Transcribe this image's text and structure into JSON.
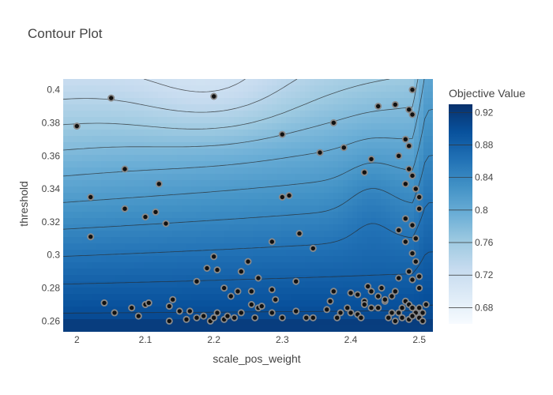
{
  "chart_data": {
    "type": "contour",
    "title": "Contour Plot",
    "xlabel": "scale_pos_weight",
    "ylabel": "threshold",
    "xlim": [
      1.98,
      2.52
    ],
    "ylim": [
      0.2535,
      0.4065
    ],
    "x_ticks": [
      2,
      2.1,
      2.2,
      2.3,
      2.4,
      2.5
    ],
    "x_tick_labels": [
      "2",
      "2.1",
      "2.2",
      "2.3",
      "2.4",
      "2.5"
    ],
    "y_ticks": [
      0.26,
      0.28,
      0.3,
      0.32,
      0.34,
      0.36,
      0.38,
      0.4
    ],
    "y_tick_labels": [
      "0.26",
      "0.28",
      "0.3",
      "0.32",
      "0.34",
      "0.36",
      "0.38",
      "0.4"
    ],
    "colorbar": {
      "title": "Objective Value",
      "range": [
        0.66,
        0.93
      ],
      "ticks": [
        0.68,
        0.72,
        0.76,
        0.8,
        0.84,
        0.88,
        0.92
      ],
      "tick_labels": [
        "0.68",
        "0.72",
        "0.76",
        "0.8",
        "0.84",
        "0.88",
        "0.92"
      ],
      "colorscale": [
        "#f7fbff",
        "#deebf7",
        "#c6dbef",
        "#9ecae1",
        "#6baed6",
        "#4292c6",
        "#2171b5",
        "#08519c",
        "#08306b"
      ]
    },
    "points": [
      [
        2.05,
        0.395
      ],
      [
        2.0,
        0.378
      ],
      [
        2.02,
        0.335
      ],
      [
        2.02,
        0.311
      ],
      [
        2.07,
        0.352
      ],
      [
        2.07,
        0.328
      ],
      [
        2.1,
        0.323
      ],
      [
        2.115,
        0.326
      ],
      [
        2.12,
        0.343
      ],
      [
        2.13,
        0.319
      ],
      [
        2.2,
        0.396
      ],
      [
        2.3,
        0.373
      ],
      [
        2.3,
        0.335
      ],
      [
        2.31,
        0.336
      ],
      [
        2.355,
        0.362
      ],
      [
        2.375,
        0.38
      ],
      [
        2.39,
        0.365
      ],
      [
        2.42,
        0.35
      ],
      [
        2.43,
        0.358
      ],
      [
        2.44,
        0.39
      ],
      [
        2.465,
        0.391
      ],
      [
        2.485,
        0.388
      ],
      [
        2.49,
        0.385
      ],
      [
        2.49,
        0.4
      ],
      [
        2.48,
        0.37
      ],
      [
        2.485,
        0.366
      ],
      [
        2.47,
        0.36
      ],
      [
        2.48,
        0.343
      ],
      [
        2.485,
        0.352
      ],
      [
        2.49,
        0.348
      ],
      [
        2.495,
        0.34
      ],
      [
        2.5,
        0.335
      ],
      [
        2.5,
        0.328
      ],
      [
        2.48,
        0.322
      ],
      [
        2.49,
        0.318
      ],
      [
        2.495,
        0.31
      ],
      [
        2.47,
        0.315
      ],
      [
        2.48,
        0.308
      ],
      [
        2.285,
        0.308
      ],
      [
        2.325,
        0.313
      ],
      [
        2.345,
        0.304
      ],
      [
        2.2,
        0.299
      ],
      [
        2.19,
        0.292
      ],
      [
        2.205,
        0.291
      ],
      [
        2.25,
        0.296
      ],
      [
        2.24,
        0.29
      ],
      [
        2.265,
        0.286
      ],
      [
        2.175,
        0.284
      ],
      [
        2.32,
        0.284
      ],
      [
        2.215,
        0.28
      ],
      [
        2.235,
        0.278
      ],
      [
        2.225,
        0.275
      ],
      [
        2.255,
        0.278
      ],
      [
        2.285,
        0.279
      ],
      [
        2.04,
        0.271
      ],
      [
        2.08,
        0.268
      ],
      [
        2.1,
        0.27
      ],
      [
        2.105,
        0.271
      ],
      [
        2.135,
        0.269
      ],
      [
        2.14,
        0.273
      ],
      [
        2.055,
        0.265
      ],
      [
        2.09,
        0.263
      ],
      [
        2.135,
        0.26
      ],
      [
        2.15,
        0.266
      ],
      [
        2.165,
        0.266
      ],
      [
        2.16,
        0.261
      ],
      [
        2.175,
        0.262
      ],
      [
        2.185,
        0.263
      ],
      [
        2.195,
        0.26
      ],
      [
        2.2,
        0.262
      ],
      [
        2.205,
        0.265
      ],
      [
        2.215,
        0.261
      ],
      [
        2.22,
        0.263
      ],
      [
        2.23,
        0.262
      ],
      [
        2.24,
        0.265
      ],
      [
        2.255,
        0.27
      ],
      [
        2.265,
        0.268
      ],
      [
        2.27,
        0.269
      ],
      [
        2.26,
        0.262
      ],
      [
        2.285,
        0.265
      ],
      [
        2.29,
        0.273
      ],
      [
        2.3,
        0.262
      ],
      [
        2.32,
        0.266
      ],
      [
        2.335,
        0.262
      ],
      [
        2.345,
        0.262
      ],
      [
        2.365,
        0.267
      ],
      [
        2.37,
        0.272
      ],
      [
        2.38,
        0.262
      ],
      [
        2.385,
        0.265
      ],
      [
        2.395,
        0.268
      ],
      [
        2.4,
        0.265
      ],
      [
        2.41,
        0.264
      ],
      [
        2.415,
        0.262
      ],
      [
        2.42,
        0.272
      ],
      [
        2.43,
        0.268
      ],
      [
        2.44,
        0.268
      ],
      [
        2.45,
        0.272
      ],
      [
        2.46,
        0.265
      ],
      [
        2.47,
        0.265
      ],
      [
        2.475,
        0.268
      ],
      [
        2.48,
        0.272
      ],
      [
        2.485,
        0.27
      ],
      [
        2.49,
        0.268
      ],
      [
        2.495,
        0.265
      ],
      [
        2.5,
        0.262
      ],
      [
        2.505,
        0.265
      ],
      [
        2.51,
        0.27
      ],
      [
        2.455,
        0.262
      ],
      [
        2.465,
        0.26
      ],
      [
        2.475,
        0.262
      ],
      [
        2.485,
        0.261
      ],
      [
        2.49,
        0.263
      ],
      [
        2.5,
        0.268
      ],
      [
        2.505,
        0.26
      ],
      [
        2.425,
        0.281
      ],
      [
        2.445,
        0.28
      ],
      [
        2.465,
        0.278
      ],
      [
        2.47,
        0.286
      ],
      [
        2.485,
        0.29
      ],
      [
        2.49,
        0.285
      ],
      [
        2.5,
        0.287
      ],
      [
        2.5,
        0.28
      ],
      [
        2.495,
        0.296
      ],
      [
        2.49,
        0.301
      ],
      [
        2.46,
        0.275
      ],
      [
        2.45,
        0.273
      ],
      [
        2.44,
        0.275
      ],
      [
        2.43,
        0.278
      ],
      [
        2.42,
        0.27
      ],
      [
        2.41,
        0.276
      ],
      [
        2.4,
        0.277
      ],
      [
        2.375,
        0.278
      ]
    ]
  }
}
